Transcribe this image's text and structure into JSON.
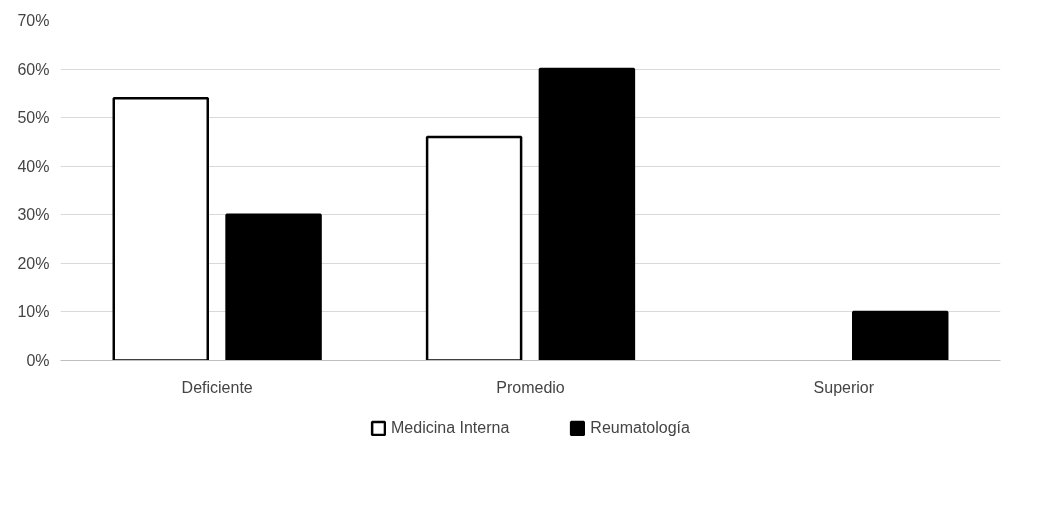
{
  "chart_data": {
    "type": "bar",
    "categories": [
      "Deficiente",
      "Promedio",
      "Superior"
    ],
    "series": [
      {
        "name": "Medicina Interna",
        "color": "#ffffff",
        "values": [
          54,
          46,
          null
        ]
      },
      {
        "name": "Reumatología",
        "color": "#000000",
        "values": [
          30,
          60,
          10
        ]
      }
    ],
    "ylim": [
      0,
      70
    ],
    "yticks": [
      {
        "value": 0,
        "label": "0%"
      },
      {
        "value": 10,
        "label": "10%"
      },
      {
        "value": 20,
        "label": "20%"
      },
      {
        "value": 30,
        "label": "30%"
      },
      {
        "value": 40,
        "label": "40%"
      },
      {
        "value": 50,
        "label": "50%"
      },
      {
        "value": 60,
        "label": "60%"
      },
      {
        "value": 70,
        "label": "70%"
      }
    ],
    "grid": "y",
    "legend": "bottom"
  }
}
